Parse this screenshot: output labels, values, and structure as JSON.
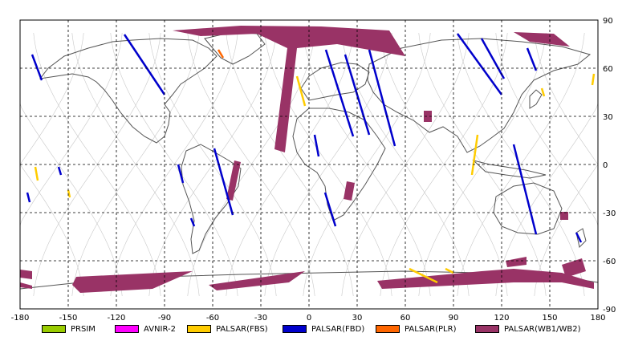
{
  "map": {
    "x_ticks": [
      "-180",
      "-150",
      "-120",
      "-90",
      "-60",
      "-30",
      "0",
      "30",
      "60",
      "90",
      "120",
      "150",
      "180"
    ],
    "y_ticks": [
      "90",
      "60",
      "30",
      "0",
      "-30",
      "-60",
      "-90"
    ],
    "x_range": [
      -180,
      180
    ],
    "y_range": [
      -90,
      90
    ],
    "grid": "dashed"
  },
  "legend": [
    {
      "label": "PRSIM",
      "color": "#99cc00"
    },
    {
      "label": "AVNIR-2",
      "color": "#ff00ff"
    },
    {
      "label": "PALSAR(FBS)",
      "color": "#ffcc00"
    },
    {
      "label": "PALSAR(FBD)",
      "color": "#0000cc"
    },
    {
      "label": "PALSAR(PLR)",
      "color": "#ff6600"
    },
    {
      "label": "PALSAR(WB1/WB2)",
      "color": "#993366"
    }
  ],
  "colors": {
    "orbit": "#c8c8c8",
    "coast": "#555555",
    "frame": "#000000",
    "grid": "#000000"
  }
}
